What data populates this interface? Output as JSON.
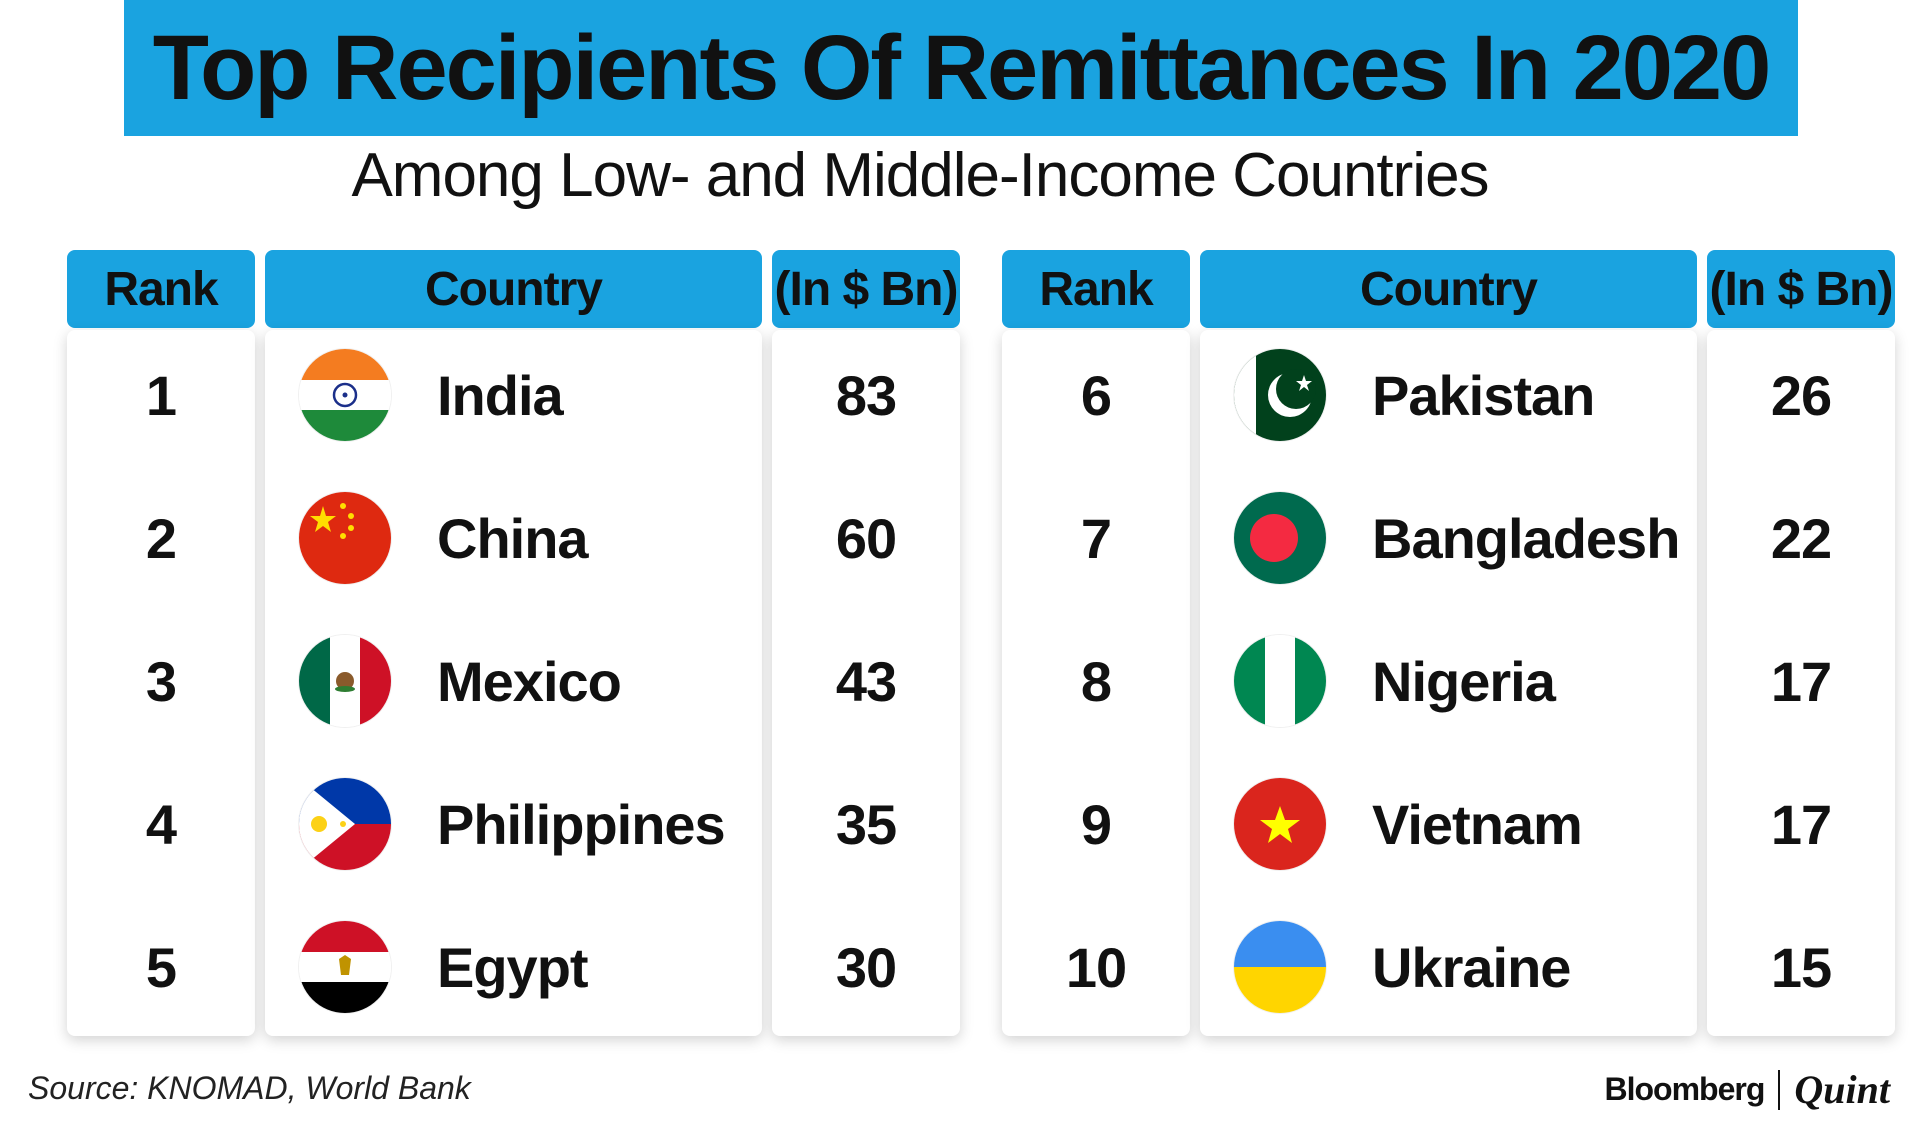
{
  "header": {
    "title": "Top Recipients Of Remittances In 2020",
    "subtitle": "Among Low- and Middle-Income Countries"
  },
  "columns": {
    "rank": "Rank",
    "country": "Country",
    "value": "(In $ Bn)"
  },
  "colors": {
    "accent": "#1aa3e0"
  },
  "chart_data": {
    "type": "table",
    "title": "Top Recipients Of Remittances In 2020",
    "subtitle": "Among Low- and Middle-Income Countries",
    "columns": [
      "Rank",
      "Country",
      "(In $ Bn)"
    ],
    "rows": [
      {
        "rank": "1",
        "country": "India",
        "value": "83",
        "flag": "india-flag-icon"
      },
      {
        "rank": "2",
        "country": "China",
        "value": "60",
        "flag": "china-flag-icon"
      },
      {
        "rank": "3",
        "country": "Mexico",
        "value": "43",
        "flag": "mexico-flag-icon"
      },
      {
        "rank": "4",
        "country": "Philippines",
        "value": "35",
        "flag": "philippines-flag-icon"
      },
      {
        "rank": "5",
        "country": "Egypt",
        "value": "30",
        "flag": "egypt-flag-icon"
      },
      {
        "rank": "6",
        "country": "Pakistan",
        "value": "26",
        "flag": "pakistan-flag-icon"
      },
      {
        "rank": "7",
        "country": "Bangladesh",
        "value": "22",
        "flag": "bangladesh-flag-icon"
      },
      {
        "rank": "8",
        "country": "Nigeria",
        "value": "17",
        "flag": "nigeria-flag-icon"
      },
      {
        "rank": "9",
        "country": "Vietnam",
        "value": "17",
        "flag": "vietnam-flag-icon"
      },
      {
        "rank": "10",
        "country": "Ukraine",
        "value": "15",
        "flag": "ukraine-flag-icon"
      }
    ]
  },
  "footer": {
    "source": "Source: KNOMAD, World Bank",
    "brand_primary": "Bloomberg",
    "brand_secondary": "Quint"
  }
}
